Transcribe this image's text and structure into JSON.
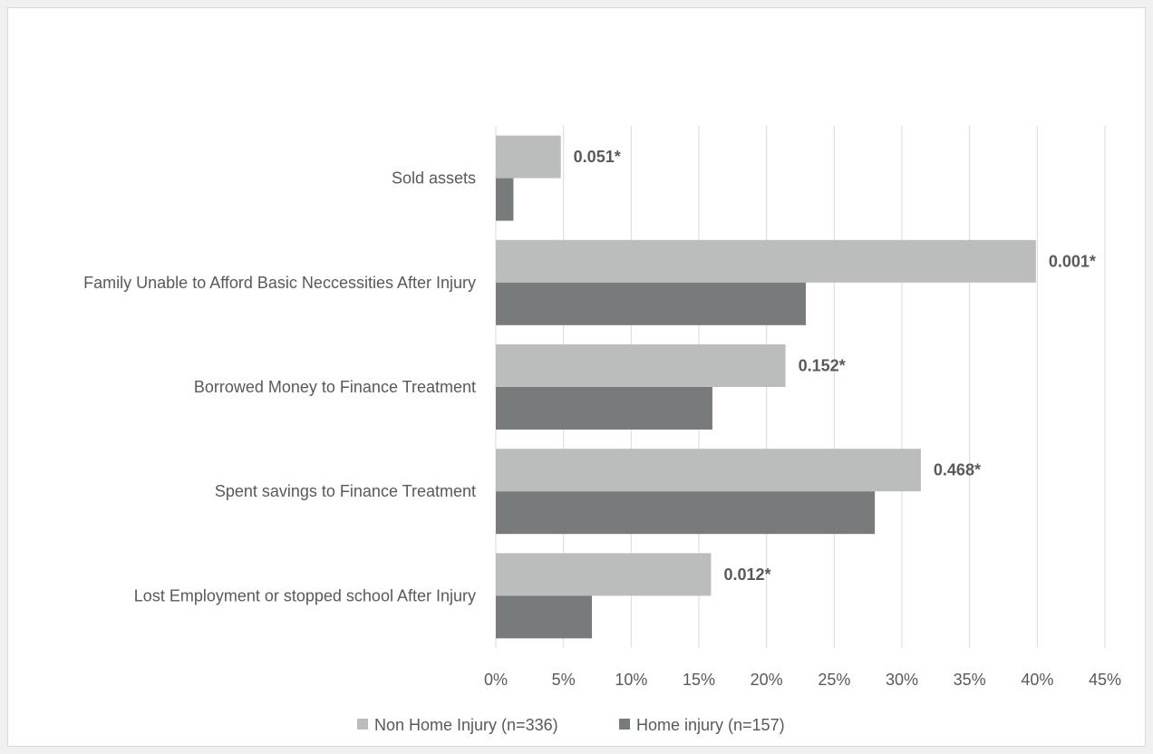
{
  "chart_data": {
    "type": "bar",
    "orientation": "horizontal",
    "title": "",
    "categories": [
      "Sold assets",
      "Family Unable to Afford Basic Neccessities After Injury",
      "Borrowed Money to Finance Treatment",
      "Spent savings to Finance Treatment",
      "Lost Employment or stopped school After Injury"
    ],
    "series": [
      {
        "name": "Non Home Injury (n=336)",
        "color": "#bbbdbd",
        "values": [
          4.8,
          39.9,
          21.4,
          31.4,
          15.9
        ]
      },
      {
        "name": "Home injury (n=157)",
        "color": "#777b7b",
        "values": [
          1.3,
          22.9,
          16.0,
          28.0,
          7.1
        ]
      }
    ],
    "data_labels": [
      "0.051*",
      "0.001*",
      "0.152*",
      "0.468*",
      "0.012*"
    ],
    "xlim": [
      0,
      45
    ],
    "x_ticks": [
      "0%",
      "5%",
      "10%",
      "15%",
      "20%",
      "25%",
      "30%",
      "35%",
      "40%",
      "45%"
    ],
    "xlabel": "",
    "ylabel": "",
    "grid": "vertical",
    "legend_position": "bottom"
  }
}
